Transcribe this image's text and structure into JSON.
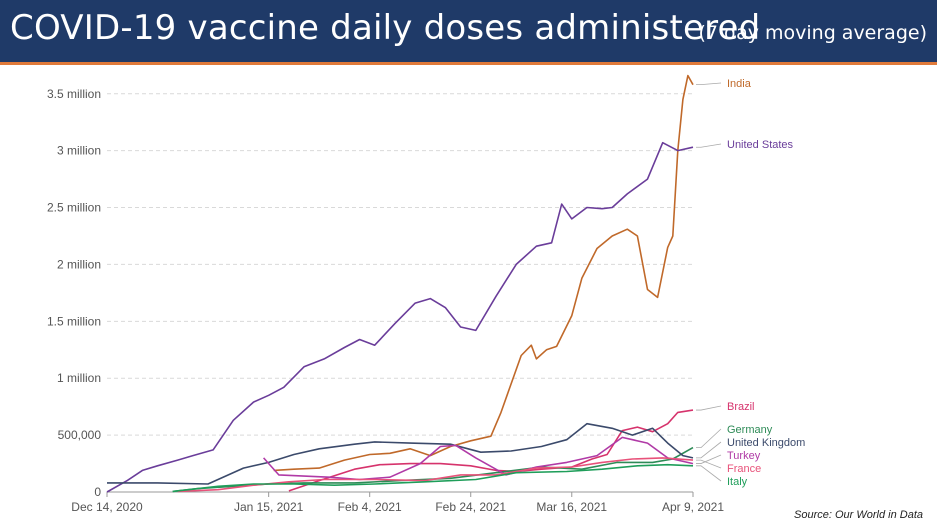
{
  "header": {
    "title": "COVID-19 vaccine daily doses administered",
    "subtitle": "(7 day moving average)"
  },
  "source": "Source: Our World in Data",
  "colors": {
    "banner": "#1f3a68",
    "banner_accent": "#e07a3a",
    "grid": "#d9d9d9",
    "axis_text": "#555555"
  },
  "chart_data": {
    "type": "line",
    "title": "COVID-19 vaccine daily doses administered",
    "subtitle": "(7 day moving average)",
    "xlabel": "",
    "ylabel": "",
    "x_range": [
      "2020-12-14",
      "2021-04-09"
    ],
    "ylim": [
      0,
      3700000
    ],
    "x_ticks": [
      {
        "date": "2020-12-14",
        "label": "Dec 14, 2020"
      },
      {
        "date": "2021-01-15",
        "label": "Jan 15, 2021"
      },
      {
        "date": "2021-02-04",
        "label": "Feb 4, 2021"
      },
      {
        "date": "2021-02-24",
        "label": "Feb 24, 2021"
      },
      {
        "date": "2021-03-16",
        "label": "Mar 16, 2021"
      },
      {
        "date": "2021-04-09",
        "label": "Apr 9, 2021"
      }
    ],
    "y_ticks": [
      {
        "value": 0,
        "label": "0"
      },
      {
        "value": 500000,
        "label": "500,000"
      },
      {
        "value": 1000000,
        "label": "1 million"
      },
      {
        "value": 1500000,
        "label": "1.5 million"
      },
      {
        "value": 2000000,
        "label": "2 million"
      },
      {
        "value": 2500000,
        "label": "2.5 million"
      },
      {
        "value": 3000000,
        "label": "3 million"
      },
      {
        "value": 3500000,
        "label": "3.5 million"
      }
    ],
    "grid": true,
    "legend": "labels at line ends (right)",
    "series": [
      {
        "name": "India",
        "color": "#c0692a",
        "points": [
          [
            "2021-01-16",
            190000
          ],
          [
            "2021-01-20",
            200000
          ],
          [
            "2021-01-25",
            210000
          ],
          [
            "2021-01-30",
            280000
          ],
          [
            "2021-02-04",
            330000
          ],
          [
            "2021-02-08",
            340000
          ],
          [
            "2021-02-12",
            380000
          ],
          [
            "2021-02-16",
            320000
          ],
          [
            "2021-02-20",
            400000
          ],
          [
            "2021-02-24",
            450000
          ],
          [
            "2021-02-28",
            490000
          ],
          [
            "2021-03-02",
            700000
          ],
          [
            "2021-03-04",
            950000
          ],
          [
            "2021-03-06",
            1200000
          ],
          [
            "2021-03-08",
            1290000
          ],
          [
            "2021-03-09",
            1170000
          ],
          [
            "2021-03-11",
            1250000
          ],
          [
            "2021-03-13",
            1280000
          ],
          [
            "2021-03-16",
            1550000
          ],
          [
            "2021-03-18",
            1880000
          ],
          [
            "2021-03-21",
            2140000
          ],
          [
            "2021-03-24",
            2250000
          ],
          [
            "2021-03-27",
            2310000
          ],
          [
            "2021-03-29",
            2250000
          ],
          [
            "2021-03-31",
            1780000
          ],
          [
            "2021-04-02",
            1710000
          ],
          [
            "2021-04-04",
            2150000
          ],
          [
            "2021-04-05",
            2250000
          ],
          [
            "2021-04-06",
            3000000
          ],
          [
            "2021-04-07",
            3450000
          ],
          [
            "2021-04-08",
            3660000
          ],
          [
            "2021-04-09",
            3580000
          ]
        ]
      },
      {
        "name": "United States",
        "color": "#6a3d9a",
        "points": [
          [
            "2020-12-14",
            0
          ],
          [
            "2020-12-18",
            100000
          ],
          [
            "2020-12-21",
            190000
          ],
          [
            "2020-12-24",
            230000
          ],
          [
            "2020-12-28",
            280000
          ],
          [
            "2020-12-31",
            320000
          ],
          [
            "2021-01-04",
            370000
          ],
          [
            "2021-01-08",
            630000
          ],
          [
            "2021-01-12",
            790000
          ],
          [
            "2021-01-15",
            850000
          ],
          [
            "2021-01-18",
            920000
          ],
          [
            "2021-01-22",
            1100000
          ],
          [
            "2021-01-26",
            1170000
          ],
          [
            "2021-01-30",
            1270000
          ],
          [
            "2021-02-02",
            1340000
          ],
          [
            "2021-02-05",
            1290000
          ],
          [
            "2021-02-09",
            1480000
          ],
          [
            "2021-02-13",
            1660000
          ],
          [
            "2021-02-16",
            1700000
          ],
          [
            "2021-02-19",
            1620000
          ],
          [
            "2021-02-22",
            1450000
          ],
          [
            "2021-02-25",
            1420000
          ],
          [
            "2021-03-01",
            1720000
          ],
          [
            "2021-03-05",
            2000000
          ],
          [
            "2021-03-09",
            2160000
          ],
          [
            "2021-03-12",
            2190000
          ],
          [
            "2021-03-14",
            2530000
          ],
          [
            "2021-03-16",
            2400000
          ],
          [
            "2021-03-19",
            2500000
          ],
          [
            "2021-03-22",
            2490000
          ],
          [
            "2021-03-24",
            2500000
          ],
          [
            "2021-03-27",
            2620000
          ],
          [
            "2021-03-31",
            2750000
          ],
          [
            "2021-04-03",
            3070000
          ],
          [
            "2021-04-06",
            3000000
          ],
          [
            "2021-04-09",
            3030000
          ]
        ]
      },
      {
        "name": "Brazil",
        "color": "#d6336c",
        "points": [
          [
            "2021-01-19",
            10000
          ],
          [
            "2021-01-25",
            100000
          ],
          [
            "2021-02-01",
            200000
          ],
          [
            "2021-02-06",
            240000
          ],
          [
            "2021-02-12",
            250000
          ],
          [
            "2021-02-18",
            250000
          ],
          [
            "2021-02-24",
            230000
          ],
          [
            "2021-03-01",
            190000
          ],
          [
            "2021-03-05",
            180000
          ],
          [
            "2021-03-10",
            200000
          ],
          [
            "2021-03-16",
            220000
          ],
          [
            "2021-03-20",
            290000
          ],
          [
            "2021-03-23",
            330000
          ],
          [
            "2021-03-26",
            540000
          ],
          [
            "2021-03-29",
            570000
          ],
          [
            "2021-04-01",
            530000
          ],
          [
            "2021-04-04",
            600000
          ],
          [
            "2021-04-06",
            700000
          ],
          [
            "2021-04-09",
            720000
          ]
        ]
      },
      {
        "name": "Germany",
        "color": "#2e8b57",
        "points": [
          [
            "2020-12-27",
            5000
          ],
          [
            "2021-01-01",
            30000
          ],
          [
            "2021-01-08",
            50000
          ],
          [
            "2021-01-15",
            70000
          ],
          [
            "2021-01-22",
            80000
          ],
          [
            "2021-02-01",
            80000
          ],
          [
            "2021-02-10",
            100000
          ],
          [
            "2021-02-20",
            120000
          ],
          [
            "2021-03-01",
            170000
          ],
          [
            "2021-03-10",
            220000
          ],
          [
            "2021-03-18",
            200000
          ],
          [
            "2021-03-25",
            260000
          ],
          [
            "2021-04-01",
            260000
          ],
          [
            "2021-04-05",
            290000
          ],
          [
            "2021-04-09",
            390000
          ]
        ]
      },
      {
        "name": "United Kingdom",
        "color": "#3b4a6b",
        "points": [
          [
            "2020-12-14",
            80000
          ],
          [
            "2020-12-24",
            80000
          ],
          [
            "2021-01-03",
            70000
          ],
          [
            "2021-01-10",
            210000
          ],
          [
            "2021-01-15",
            260000
          ],
          [
            "2021-01-20",
            330000
          ],
          [
            "2021-01-25",
            380000
          ],
          [
            "2021-02-01",
            420000
          ],
          [
            "2021-02-05",
            440000
          ],
          [
            "2021-02-12",
            430000
          ],
          [
            "2021-02-20",
            420000
          ],
          [
            "2021-02-26",
            350000
          ],
          [
            "2021-03-04",
            360000
          ],
          [
            "2021-03-10",
            400000
          ],
          [
            "2021-03-15",
            460000
          ],
          [
            "2021-03-19",
            600000
          ],
          [
            "2021-03-24",
            560000
          ],
          [
            "2021-03-28",
            500000
          ],
          [
            "2021-04-01",
            560000
          ],
          [
            "2021-04-04",
            430000
          ],
          [
            "2021-04-07",
            320000
          ],
          [
            "2021-04-09",
            300000
          ]
        ]
      },
      {
        "name": "Turkey",
        "color": "#b03aa6",
        "points": [
          [
            "2021-01-14",
            300000
          ],
          [
            "2021-01-17",
            150000
          ],
          [
            "2021-01-22",
            140000
          ],
          [
            "2021-01-27",
            130000
          ],
          [
            "2021-02-02",
            110000
          ],
          [
            "2021-02-08",
            130000
          ],
          [
            "2021-02-14",
            250000
          ],
          [
            "2021-02-18",
            400000
          ],
          [
            "2021-02-21",
            410000
          ],
          [
            "2021-02-25",
            300000
          ],
          [
            "2021-03-03",
            150000
          ],
          [
            "2021-03-09",
            220000
          ],
          [
            "2021-03-15",
            260000
          ],
          [
            "2021-03-21",
            320000
          ],
          [
            "2021-03-26",
            480000
          ],
          [
            "2021-03-31",
            430000
          ],
          [
            "2021-04-04",
            300000
          ],
          [
            "2021-04-09",
            250000
          ]
        ]
      },
      {
        "name": "France",
        "color": "#e8527a",
        "points": [
          [
            "2020-12-28",
            5000
          ],
          [
            "2021-01-05",
            20000
          ],
          [
            "2021-01-12",
            60000
          ],
          [
            "2021-01-19",
            90000
          ],
          [
            "2021-01-26",
            110000
          ],
          [
            "2021-02-05",
            110000
          ],
          [
            "2021-02-15",
            100000
          ],
          [
            "2021-02-22",
            150000
          ],
          [
            "2021-03-01",
            150000
          ],
          [
            "2021-03-09",
            210000
          ],
          [
            "2021-03-16",
            220000
          ],
          [
            "2021-03-22",
            260000
          ],
          [
            "2021-03-28",
            290000
          ],
          [
            "2021-04-03",
            300000
          ],
          [
            "2021-04-09",
            280000
          ]
        ]
      },
      {
        "name": "Italy",
        "color": "#1f9e5a",
        "points": [
          [
            "2020-12-27",
            5000
          ],
          [
            "2021-01-05",
            50000
          ],
          [
            "2021-01-12",
            70000
          ],
          [
            "2021-01-20",
            70000
          ],
          [
            "2021-01-28",
            60000
          ],
          [
            "2021-02-05",
            70000
          ],
          [
            "2021-02-15",
            90000
          ],
          [
            "2021-02-25",
            110000
          ],
          [
            "2021-03-05",
            170000
          ],
          [
            "2021-03-15",
            180000
          ],
          [
            "2021-03-22",
            200000
          ],
          [
            "2021-03-29",
            230000
          ],
          [
            "2021-04-04",
            240000
          ],
          [
            "2021-04-09",
            230000
          ]
        ]
      }
    ]
  }
}
